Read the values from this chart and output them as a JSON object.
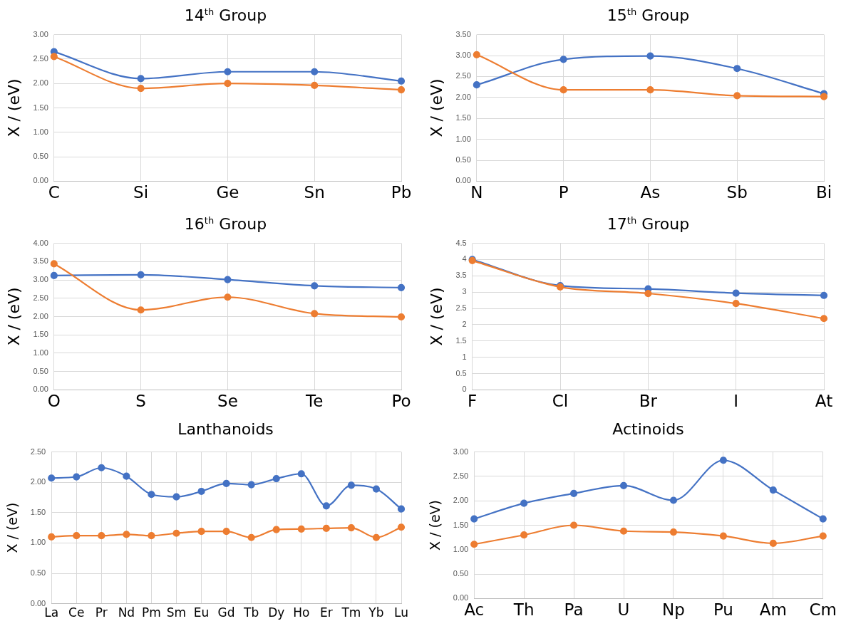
{
  "chart_data": [
    {
      "type": "line",
      "title": "14$^{th}$ Group",
      "ylabel": "X / (eV)",
      "categories": [
        "C",
        "Si",
        "Ge",
        "Sn",
        "Pb"
      ],
      "ylim": [
        0,
        3
      ],
      "yticks": [
        {
          "value": 0,
          "label": "0.00"
        },
        {
          "value": 0.5,
          "label": "0.50"
        },
        {
          "value": 1,
          "label": "1.00"
        },
        {
          "value": 1.5,
          "label": "1.50"
        },
        {
          "value": 2,
          "label": "2.00"
        },
        {
          "value": 2.5,
          "label": "2.50"
        },
        {
          "value": 3,
          "label": "3.00"
        }
      ],
      "grid": true,
      "marker": "circle",
      "line_style": "solid",
      "series": [
        {
          "color": "#4472c4",
          "values": [
            2.65,
            2.1,
            2.24,
            2.24,
            2.05
          ]
        },
        {
          "color": "#ed7d31",
          "values": [
            2.55,
            1.9,
            2.0,
            1.96,
            1.87
          ]
        }
      ]
    },
    {
      "type": "line",
      "title": "15$^{th}$ Group",
      "ylabel": "X / (eV)",
      "categories": [
        "N",
        "P",
        "As",
        "Sb",
        "Bi"
      ],
      "ylim": [
        0,
        3.5
      ],
      "yticks": [
        {
          "value": 0,
          "label": "0.00"
        },
        {
          "value": 0.5,
          "label": "0.50"
        },
        {
          "value": 1,
          "label": "1.00"
        },
        {
          "value": 1.5,
          "label": "1.50"
        },
        {
          "value": 2,
          "label": "2.00"
        },
        {
          "value": 2.5,
          "label": "2.50"
        },
        {
          "value": 3,
          "label": "3.00"
        },
        {
          "value": 3.5,
          "label": "3.50"
        }
      ],
      "grid": true,
      "marker": "circle",
      "line_style": "solid",
      "series": [
        {
          "color": "#4472c4",
          "values": [
            2.3,
            2.91,
            2.99,
            2.69,
            2.09
          ]
        },
        {
          "color": "#ed7d31",
          "values": [
            3.02,
            2.18,
            2.18,
            2.04,
            2.02
          ]
        }
      ]
    },
    {
      "type": "line",
      "title": "16$^{th}$ Group",
      "ylabel": "X / (eV)",
      "categories": [
        "O",
        "S",
        "Se",
        "Te",
        "Po"
      ],
      "ylim": [
        0,
        4
      ],
      "yticks": [
        {
          "value": 0,
          "label": "0.00"
        },
        {
          "value": 0.5,
          "label": "0.50"
        },
        {
          "value": 1,
          "label": "1.00"
        },
        {
          "value": 1.5,
          "label": "1.50"
        },
        {
          "value": 2,
          "label": "2.00"
        },
        {
          "value": 2.5,
          "label": "2.50"
        },
        {
          "value": 3,
          "label": "3.00"
        },
        {
          "value": 3.5,
          "label": "3.50"
        },
        {
          "value": 4,
          "label": "4.00"
        }
      ],
      "grid": true,
      "marker": "circle",
      "line_style": "solid",
      "series": [
        {
          "color": "#4472c4",
          "values": [
            3.12,
            3.14,
            3.01,
            2.84,
            2.79
          ]
        },
        {
          "color": "#ed7d31",
          "values": [
            3.44,
            2.18,
            2.53,
            2.08,
            1.99
          ]
        }
      ]
    },
    {
      "type": "line",
      "title": "17$^{th}$ Group",
      "ylabel": "X / (eV)",
      "categories": [
        "F",
        "Cl",
        "Br",
        "I",
        "At"
      ],
      "ylim": [
        0,
        4.5
      ],
      "yticks": [
        0,
        0.5,
        1,
        1.5,
        2,
        2.5,
        3,
        3.5,
        4,
        4.5
      ],
      "grid": true,
      "marker": "circle",
      "line_style": "solid",
      "series": [
        {
          "color": "#4472c4",
          "values": [
            4.0,
            3.2,
            3.1,
            2.97,
            2.9
          ]
        },
        {
          "color": "#ed7d31",
          "values": [
            3.97,
            3.16,
            2.96,
            2.65,
            2.19
          ]
        }
      ]
    },
    {
      "type": "line",
      "title": "Lanthanoids",
      "ylabel": "X / (eV)",
      "categories": [
        "La",
        "Ce",
        "Pr",
        "Nd",
        "Pm",
        "Sm",
        "Eu",
        "Gd",
        "Tb",
        "Dy",
        "Ho",
        "Er",
        "Tm",
        "Yb",
        "Lu"
      ],
      "ylim": [
        0,
        2.5
      ],
      "yticks": [
        {
          "value": 0,
          "label": "0.00"
        },
        {
          "value": 0.5,
          "label": "0.50"
        },
        {
          "value": 1,
          "label": "1.00"
        },
        {
          "value": 1.5,
          "label": "1.50"
        },
        {
          "value": 2,
          "label": "2.00"
        },
        {
          "value": 2.5,
          "label": "2.50"
        }
      ],
      "grid": true,
      "marker": "circle",
      "line_style": "solid",
      "series": [
        {
          "color": "#4472c4",
          "values": [
            2.07,
            2.09,
            2.24,
            2.1,
            1.8,
            1.76,
            1.85,
            1.98,
            1.96,
            2.06,
            2.14,
            1.61,
            1.95,
            1.89,
            1.56
          ]
        },
        {
          "color": "#ed7d31",
          "values": [
            1.1,
            1.12,
            1.12,
            1.14,
            1.12,
            1.16,
            1.19,
            1.19,
            1.09,
            1.22,
            1.23,
            1.24,
            1.25,
            1.09,
            1.26
          ]
        }
      ]
    },
    {
      "type": "line",
      "title": "Actinoids",
      "ylabel": "X / (eV)",
      "categories": [
        "Ac",
        "Th",
        "Pa",
        "U",
        "Np",
        "Pu",
        "Am",
        "Cm"
      ],
      "ylim": [
        0,
        3
      ],
      "yticks": [
        {
          "value": 0,
          "label": "0.00"
        },
        {
          "value": 0.5,
          "label": "0.50"
        },
        {
          "value": 1,
          "label": "1.00"
        },
        {
          "value": 1.5,
          "label": "1.50"
        },
        {
          "value": 2,
          "label": "2.00"
        },
        {
          "value": 2.5,
          "label": "2.50"
        },
        {
          "value": 3,
          "label": "3.00"
        }
      ],
      "grid": true,
      "marker": "circle",
      "line_style": "solid",
      "series": [
        {
          "color": "#4472c4",
          "values": [
            1.63,
            1.95,
            2.15,
            2.31,
            2.01,
            2.83,
            2.22,
            1.63
          ]
        },
        {
          "color": "#ed7d31",
          "values": [
            1.11,
            1.3,
            1.5,
            1.38,
            1.36,
            1.28,
            1.13,
            1.28
          ]
        }
      ]
    }
  ]
}
